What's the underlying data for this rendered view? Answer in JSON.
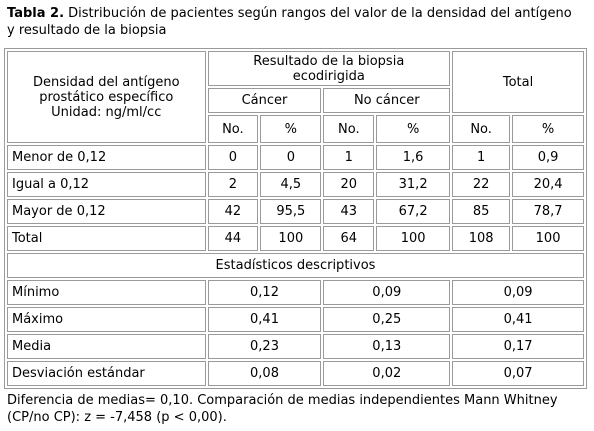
{
  "caption": {
    "label": "Tabla 2.",
    "text_line1": " Distribución de pacientes según rangos del valor de la densidad del antígeno",
    "text_line2": "y resultado de la biopsia"
  },
  "header": {
    "stub_line1": "Densidad del antígeno",
    "stub_line2": "prostático específico",
    "stub_line3": "Unidad: ng/ml/cc",
    "group_line1": "Resultado de la biopsia",
    "group_line2": "ecodirigida",
    "total": "Total",
    "cancer": "Cáncer",
    "no_cancer": "No cáncer",
    "no": "No.",
    "pct": "%"
  },
  "rows": [
    {
      "label": "Menor de  0,12",
      "c_no": "0",
      "c_pct": "0",
      "nc_no": "1",
      "nc_pct": "1,6",
      "t_no": "1",
      "t_pct": "0,9"
    },
    {
      "label": "Igual a 0,12",
      "c_no": "2",
      "c_pct": "4,5",
      "nc_no": "20",
      "nc_pct": "31,2",
      "t_no": "22",
      "t_pct": "20,4"
    },
    {
      "label": "Mayor de 0,12",
      "c_no": "42",
      "c_pct": "95,5",
      "nc_no": "43",
      "nc_pct": "67,2",
      "t_no": "85",
      "t_pct": "78,7"
    },
    {
      "label": "Total",
      "c_no": "44",
      "c_pct": "100",
      "nc_no": "64",
      "nc_pct": "100",
      "t_no": "108",
      "t_pct": "100"
    }
  ],
  "stats_title": "Estadísticos descriptivos",
  "stats": [
    {
      "label": "Mínimo",
      "cancer": "0,12",
      "no_cancer": "0,09",
      "total": "0,09"
    },
    {
      "label": "Máximo",
      "cancer": "0,41",
      "no_cancer": "0,25",
      "total": "0,41"
    },
    {
      "label": "Media",
      "cancer": "0,23",
      "no_cancer": "0,13",
      "total": "0,17"
    },
    {
      "label": "Desviación estándar",
      "cancer": "0,08",
      "no_cancer": "0,02",
      "total": "0,07"
    }
  ],
  "footnote": {
    "line1": "Diferencia de medias= 0,10. Comparación de medias independientes Mann Whitney",
    "line2": "(CP/no CP): z = -7,458 (p < 0,00)."
  }
}
